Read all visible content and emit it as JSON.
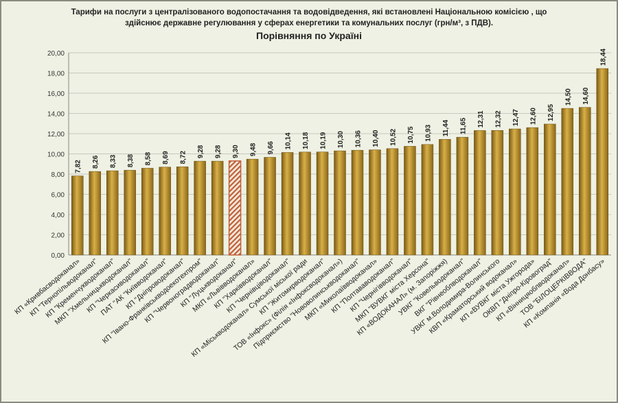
{
  "chart_data": {
    "type": "bar",
    "title_line1": "Тарифи на послуги з централізованого водопостачання та водовідведення, які встановлені Національною комісією , що",
    "title_line2": "здійснює державне регулювання у сферах енергетики та комунальних послуг (грн/м³, з ПДВ).",
    "subtitle": "Порівняння по Україні",
    "xlabel": "",
    "ylabel": "",
    "ylim": [
      0,
      20
    ],
    "yticks": [
      "0,00",
      "2,00",
      "4,00",
      "6,00",
      "8,00",
      "10,00",
      "12,00",
      "14,00",
      "16,00",
      "18,00",
      "20,00"
    ],
    "grid": true,
    "highlight_index": 9,
    "colors": {
      "bar": "#b8902e",
      "bar_dark": "#7a5a14",
      "highlight": "#c0603a"
    },
    "categories": [
      "КП «Кривбасводоканал»",
      "КП \"Тернопільводоканал\"",
      "КП \"Кременчукводоканал\"",
      "МКП \"Хмельницькводоканал\"",
      "КП \"Черкасиводоканал\"",
      "ПАТ \"АК \"Київводоканал\"",
      "КП \"Дніпроводоканал\"",
      "КП \"Івано-Франківськводоекотехпром\"",
      "КП \"Червоноградводоканал\"",
      "КП \"Луцькводоканал\"",
      "МКП «Львівводоканал»",
      "КП \"Харківводоканал\"",
      "КП \"Чернівціводоканал\"",
      "КП «Міськводоканал» Сумської міської ради",
      "КП \"Житомирводоканал\"",
      "ТОВ «Інфокс» (Філія «Інфоксводоканал»)",
      "Підприємство \"Нововолинськводоканал\"",
      "МКП «Миколаївводоканал»",
      "КП \"Полтававодоканал\"",
      "КП \"Чернігівводоканал\"",
      "МКП \"ВУВКГ міста Херсона\"",
      "КП «ВОДОКАНАЛ» (м. Запоріжжя)",
      "УВКГ \"Ковельводоканал\"",
      "ВКГ \"Рівнеоблводоканал\"",
      "УВКГ м.Володимира-Волинського",
      "КВП «Краматорський водоканал»",
      "КП «ВУВКГ міста Ужгорода»",
      "ОКВП \"Дніпро-Кіровоград\"",
      "КП «Вінницяоблводоканал»",
      "ТОВ \"БІЛОЦЕРКІВВОДА\"",
      "КП «Компанія «Вода Донбасу»"
    ],
    "values": [
      7.82,
      8.26,
      8.33,
      8.38,
      8.58,
      8.69,
      8.72,
      9.28,
      9.28,
      9.3,
      9.48,
      9.66,
      10.14,
      10.18,
      10.19,
      10.3,
      10.36,
      10.4,
      10.52,
      10.75,
      10.93,
      11.44,
      11.65,
      12.31,
      12.32,
      12.47,
      12.6,
      12.95,
      14.5,
      14.6,
      18.44
    ],
    "value_labels": [
      "7,82",
      "8,26",
      "8,33",
      "8,38",
      "8,58",
      "8,69",
      "8,72",
      "9,28",
      "9,28",
      "9,30",
      "9,48",
      "9,66",
      "10,14",
      "10,18",
      "10,19",
      "10,30",
      "10,36",
      "10,40",
      "10,52",
      "10,75",
      "10,93",
      "11,44",
      "11,65",
      "12,31",
      "12,32",
      "12,47",
      "12,60",
      "12,95",
      "14,50",
      "14,60",
      "18,44"
    ]
  }
}
